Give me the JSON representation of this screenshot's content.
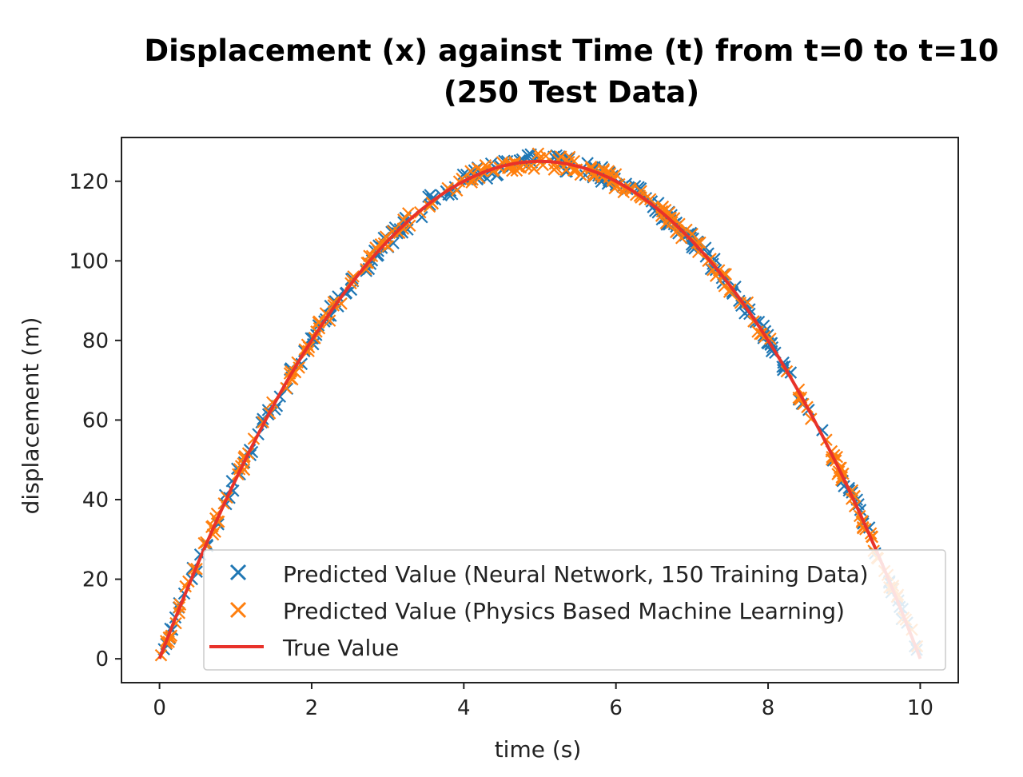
{
  "chart_data": {
    "type": "scatter",
    "title": "Displacement (x) against Time (t) from t=0 to t=10",
    "subtitle": "(250 Test Data)",
    "xlabel": "time (s)",
    "ylabel": "displacement (m)",
    "xlim": [
      -0.5,
      10.5
    ],
    "ylim": [
      -6,
      131
    ],
    "xticks": [
      0,
      2,
      4,
      6,
      8,
      10
    ],
    "yticks": [
      0,
      20,
      40,
      60,
      80,
      100,
      120
    ],
    "grid": false,
    "legend_position": "lower-right",
    "series": [
      {
        "name": "Predicted Value (Neural Network, 150 Training Data)",
        "kind": "scatter",
        "marker": "x",
        "color": "#1f77b4",
        "n_points": 250,
        "x_range": [
          0,
          10
        ],
        "function": "x = 50t - 5t^2 (with small scatter)"
      },
      {
        "name": "Predicted Value (Physics Based Machine Learning)",
        "kind": "scatter",
        "marker": "x",
        "color": "#ff7f0e",
        "n_points": 250,
        "x_range": [
          0,
          10
        ],
        "function": "x = 50t - 5t^2 (with small scatter)"
      },
      {
        "name": "True Value",
        "kind": "line",
        "color": "#e8322a",
        "x_range": [
          0,
          10
        ],
        "function": "x = 50t - 5t^2"
      }
    ]
  }
}
